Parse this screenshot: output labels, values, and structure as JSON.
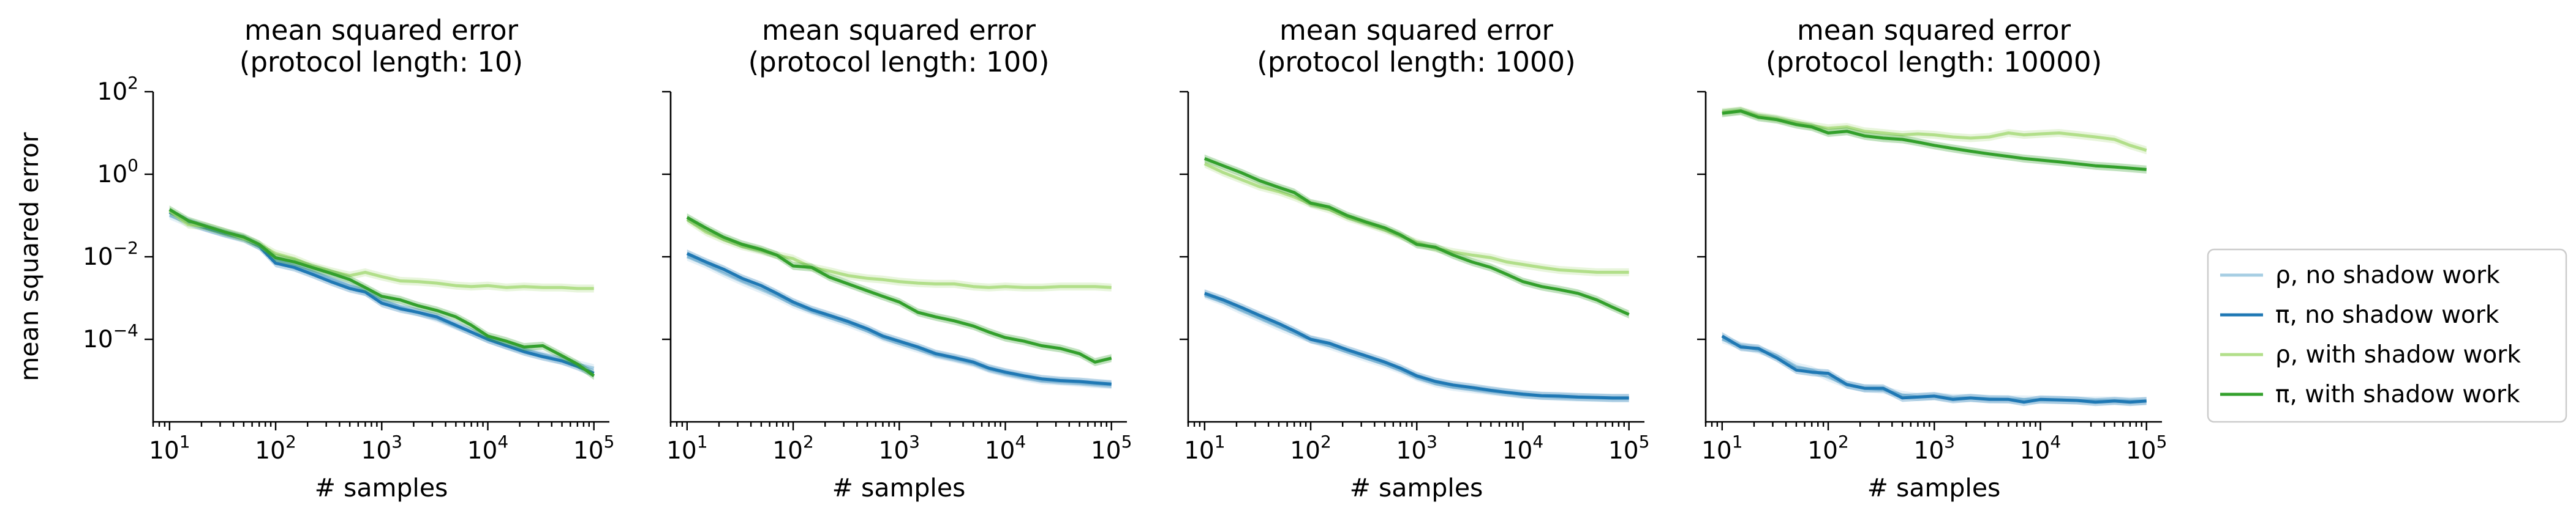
{
  "chart_data": [
    {
      "type": "line",
      "title": "mean squared error\n(protocol length: 10)",
      "xlabel": "# samples",
      "ylabel": "mean squared error",
      "xscale": "log",
      "yscale": "log",
      "xlim": [
        7,
        140000
      ],
      "ylim": [
        1e-06,
        100
      ],
      "x": [
        10,
        15,
        22,
        33,
        50,
        70,
        100,
        150,
        220,
        330,
        500,
        700,
        1000,
        1500,
        2200,
        3300,
        5000,
        7000,
        10000,
        15000,
        22000,
        33000,
        50000,
        70000,
        100000
      ],
      "series": [
        {
          "name": "ρ, no shadow work",
          "values": [
            0.1,
            0.065,
            0.05,
            0.036,
            0.027,
            0.018,
            0.0085,
            0.006,
            0.0045,
            0.003,
            0.002,
            0.0014,
            0.0009,
            0.0006,
            0.00045,
            0.00032,
            0.00021,
            0.00015,
            0.0001,
            7e-05,
            5.5e-05,
            4.2e-05,
            3e-05,
            2.5e-05,
            2e-05
          ]
        },
        {
          "name": "π, no shadow work",
          "values": [
            0.12,
            0.07,
            0.05,
            0.037,
            0.028,
            0.018,
            0.007,
            0.0055,
            0.0038,
            0.0025,
            0.0017,
            0.0014,
            0.00075,
            0.00055,
            0.00045,
            0.00035,
            0.00022,
            0.00015,
            0.0001,
            7e-05,
            5e-05,
            3.8e-05,
            3e-05,
            2.2e-05,
            1.5e-05
          ]
        },
        {
          "name": "ρ, with shadow work",
          "values": [
            0.13,
            0.06,
            0.055,
            0.04,
            0.028,
            0.02,
            0.012,
            0.009,
            0.006,
            0.0045,
            0.0035,
            0.0042,
            0.0033,
            0.0026,
            0.0025,
            0.0023,
            0.002,
            0.0019,
            0.002,
            0.0018,
            0.0019,
            0.0018,
            0.0018,
            0.0017,
            0.0017
          ]
        },
        {
          "name": "π, with shadow work",
          "values": [
            0.14,
            0.075,
            0.055,
            0.04,
            0.03,
            0.02,
            0.0095,
            0.0075,
            0.0055,
            0.004,
            0.0028,
            0.0018,
            0.0011,
            0.0009,
            0.00065,
            0.0005,
            0.00035,
            0.00022,
            0.00012,
            9e-05,
            6.5e-05,
            7e-05,
            4e-05,
            2.5e-05,
            1.3e-05
          ]
        }
      ]
    },
    {
      "type": "line",
      "title": "mean squared error\n(protocol length: 100)",
      "xlabel": "# samples",
      "ylabel": "",
      "xscale": "log",
      "yscale": "log",
      "xlim": [
        7,
        140000
      ],
      "ylim": [
        1e-06,
        100
      ],
      "x": [
        10,
        15,
        22,
        33,
        50,
        70,
        100,
        150,
        220,
        330,
        500,
        700,
        1000,
        1500,
        2200,
        3300,
        5000,
        7000,
        10000,
        15000,
        22000,
        33000,
        50000,
        70000,
        100000
      ],
      "series": [
        {
          "name": "ρ, no shadow work",
          "values": [
            0.01,
            0.0065,
            0.004,
            0.0025,
            0.0016,
            0.0011,
            0.0007,
            0.00048,
            0.00034,
            0.00024,
            0.00016,
            0.00011,
            8e-05,
            5.8e-05,
            4.2e-05,
            3.4e-05,
            2.6e-05,
            1.9e-05,
            1.5e-05,
            1.2e-05,
            1e-05,
            9.5e-06,
            8.8e-06,
            8.2e-06,
            7.8e-06
          ]
        },
        {
          "name": "π, no shadow work",
          "values": [
            0.012,
            0.0075,
            0.005,
            0.003,
            0.002,
            0.0013,
            0.0008,
            0.00052,
            0.00038,
            0.00027,
            0.00018,
            0.00012,
            9e-05,
            6.5e-05,
            4.5e-05,
            3.6e-05,
            2.8e-05,
            2e-05,
            1.6e-05,
            1.3e-05,
            1.1e-05,
            1e-05,
            9.5e-06,
            8.8e-06,
            8.2e-06
          ]
        },
        {
          "name": "ρ, with shadow work",
          "values": [
            0.08,
            0.04,
            0.026,
            0.018,
            0.014,
            0.011,
            0.009,
            0.0055,
            0.0045,
            0.0035,
            0.003,
            0.0028,
            0.0025,
            0.0023,
            0.0022,
            0.0022,
            0.0019,
            0.0018,
            0.0019,
            0.0018,
            0.0018,
            0.0019,
            0.0019,
            0.0019,
            0.0018
          ]
        },
        {
          "name": "π, with shadow work",
          "values": [
            0.09,
            0.05,
            0.03,
            0.02,
            0.015,
            0.011,
            0.006,
            0.0055,
            0.0032,
            0.0022,
            0.0015,
            0.0011,
            0.0008,
            0.00045,
            0.00035,
            0.00028,
            0.00021,
            0.00015,
            0.00011,
            9e-05,
            7e-05,
            6e-05,
            4.5e-05,
            2.8e-05,
            3.5e-05
          ]
        }
      ]
    },
    {
      "type": "line",
      "title": "mean squared error\n(protocol length: 1000)",
      "xlabel": "# samples",
      "ylabel": "",
      "xscale": "log",
      "yscale": "log",
      "xlim": [
        7,
        140000
      ],
      "ylim": [
        1e-06,
        100
      ],
      "x": [
        10,
        15,
        22,
        33,
        50,
        70,
        100,
        150,
        220,
        330,
        500,
        700,
        1000,
        1500,
        2200,
        3300,
        5000,
        7000,
        10000,
        15000,
        22000,
        33000,
        50000,
        70000,
        100000
      ],
      "series": [
        {
          "name": "ρ, no shadow work",
          "values": [
            0.0012,
            0.0008,
            0.0005,
            0.00032,
            0.0002,
            0.00014,
            0.0001,
            7e-05,
            5e-05,
            3.5e-05,
            2.5e-05,
            1.8e-05,
            1.2e-05,
            8.5e-06,
            7e-06,
            6.2e-06,
            5.5e-06,
            5e-06,
            4.5e-06,
            4.2e-06,
            4e-06,
            3.9e-06,
            3.8e-06,
            3.7e-06,
            3.7e-06
          ]
        },
        {
          "name": "π, no shadow work",
          "values": [
            0.0013,
            0.0009,
            0.0006,
            0.00038,
            0.00024,
            0.00016,
            0.0001,
            8e-05,
            5.6e-05,
            4e-05,
            2.8e-05,
            2e-05,
            1.3e-05,
            9.5e-06,
            7.8e-06,
            6.8e-06,
            5.8e-06,
            5.2e-06,
            4.7e-06,
            4.3e-06,
            4.2e-06,
            4e-06,
            3.9e-06,
            3.8e-06,
            3.8e-06
          ]
        },
        {
          "name": "ρ, with shadow work",
          "values": [
            1.8,
            1.1,
            0.75,
            0.5,
            0.38,
            0.28,
            0.19,
            0.14,
            0.09,
            0.065,
            0.045,
            0.032,
            0.022,
            0.016,
            0.013,
            0.011,
            0.0095,
            0.0075,
            0.0065,
            0.0055,
            0.0048,
            0.0045,
            0.0042,
            0.0042,
            0.0042
          ]
        },
        {
          "name": "π, with shadow work",
          "values": [
            2.4,
            1.6,
            1.1,
            0.7,
            0.48,
            0.36,
            0.2,
            0.16,
            0.1,
            0.07,
            0.05,
            0.034,
            0.02,
            0.017,
            0.011,
            0.0075,
            0.0055,
            0.0038,
            0.0025,
            0.0019,
            0.0016,
            0.0013,
            0.0009,
            0.0006,
            0.0004
          ]
        }
      ]
    },
    {
      "type": "line",
      "title": "mean squared error\n(protocol length: 10000)",
      "xlabel": "# samples",
      "ylabel": "",
      "xscale": "log",
      "yscale": "log",
      "xlim": [
        7,
        140000
      ],
      "ylim": [
        1e-06,
        100
      ],
      "x": [
        10,
        15,
        22,
        33,
        50,
        70,
        100,
        150,
        220,
        330,
        500,
        700,
        1000,
        1500,
        2200,
        3300,
        5000,
        7000,
        10000,
        15000,
        22000,
        33000,
        50000,
        70000,
        100000
      ],
      "series": [
        {
          "name": "ρ, no shadow work",
          "values": [
            0.0001,
            7e-05,
            5.5e-05,
            4e-05,
            2.2e-05,
            1.8e-05,
            1.2e-05,
            8e-06,
            6.5e-06,
            6e-06,
            4.5e-06,
            4e-06,
            4.2e-06,
            3.8e-06,
            3.8e-06,
            3.6e-06,
            3.5e-06,
            3.5e-06,
            3.4e-06,
            3.4e-06,
            3.3e-06,
            3.3e-06,
            3.3e-06,
            3.2e-06,
            3.2e-06
          ]
        },
        {
          "name": "π, no shadow work",
          "values": [
            0.00012,
            6.5e-05,
            6e-05,
            3.5e-05,
            1.8e-05,
            1.6e-05,
            1.5e-05,
            8e-06,
            6.5e-06,
            6.5e-06,
            3.8e-06,
            4e-06,
            4.2e-06,
            3.5e-06,
            3.8e-06,
            3.5e-06,
            3.5e-06,
            3e-06,
            3.5e-06,
            3.4e-06,
            3.3e-06,
            3e-06,
            3.2e-06,
            3e-06,
            3.2e-06
          ]
        },
        {
          "name": "ρ, with shadow work",
          "values": [
            32,
            35,
            26,
            22,
            18,
            15,
            13,
            14,
            11,
            10,
            9,
            9.5,
            9,
            8,
            7.5,
            8,
            10,
            9,
            9.5,
            10,
            9,
            8,
            7,
            5,
            3.8
          ]
        },
        {
          "name": "π, with shadow work",
          "values": [
            30,
            34,
            24,
            21,
            16,
            14,
            10,
            11,
            8.5,
            7.5,
            7,
            6,
            5,
            4.2,
            3.6,
            3.1,
            2.7,
            2.4,
            2.2,
            2.0,
            1.8,
            1.6,
            1.5,
            1.4,
            1.3
          ]
        }
      ]
    }
  ],
  "legend": {
    "placement": "right",
    "items": [
      {
        "label": "ρ, no shadow work",
        "color": "#a6cee3"
      },
      {
        "label": "π, no shadow work",
        "color": "#1f78b4"
      },
      {
        "label": "ρ, with shadow work",
        "color": "#b2df8a"
      },
      {
        "label": "π, with shadow work",
        "color": "#33a02c"
      }
    ]
  },
  "series_colors": [
    "#a6cee3",
    "#1f78b4",
    "#b2df8a",
    "#33a02c"
  ],
  "x_tick_labels": [
    {
      "base": "10",
      "exp": "1"
    },
    {
      "base": "10",
      "exp": "2"
    },
    {
      "base": "10",
      "exp": "3"
    },
    {
      "base": "10",
      "exp": "4"
    },
    {
      "base": "10",
      "exp": "5"
    }
  ],
  "y_tick_labels": [
    {
      "base": "10",
      "exp": "2"
    },
    {
      "base": "10",
      "exp": "0"
    },
    {
      "base": "10",
      "exp": "−2"
    },
    {
      "base": "10",
      "exp": "−4"
    }
  ]
}
